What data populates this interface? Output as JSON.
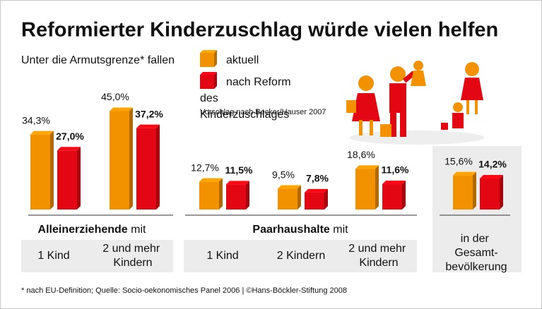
{
  "chart_data": {
    "type": "bar",
    "title": "Reformierter Kinderzuschlag würde vielen helfen",
    "legend_title": "Unter die Armutsgrenze* fallen",
    "note": "Vorschlag nach Becker/Hauser 2007",
    "footer": "* nach EU-Definition; Quelle: Socio-oekonomisches Panel 2006 | ©Hans-Böckler-Stiftung 2008",
    "groups": [
      {
        "name": "Alleinerziehende",
        "suffix": "mit"
      },
      {
        "name": "Paarhaushalte",
        "suffix": "mit"
      }
    ],
    "categories": [
      "1 Kind",
      "2 und mehr Kindern",
      "1 Kind",
      "2 Kindern",
      "2 und mehr Kindern",
      "in der Gesamt-bevölkerung"
    ],
    "series": [
      {
        "name": "aktuell",
        "color": "#f39200",
        "values": [
          34.3,
          45.0,
          12.7,
          9.5,
          18.6,
          15.6
        ],
        "value_labels": [
          "34,3%",
          "45,0%",
          "12,7%",
          "9,5%",
          "18,6%",
          "15,6%"
        ]
      },
      {
        "name": "nach Reform des Kinderzuschlages",
        "color": "#e30613",
        "values": [
          27.0,
          37.2,
          11.5,
          7.8,
          11.6,
          14.2
        ],
        "value_labels": [
          "27,0%",
          "37,2%",
          "11,5%",
          "7,8%",
          "11,6%",
          "14,2%"
        ]
      }
    ]
  }
}
